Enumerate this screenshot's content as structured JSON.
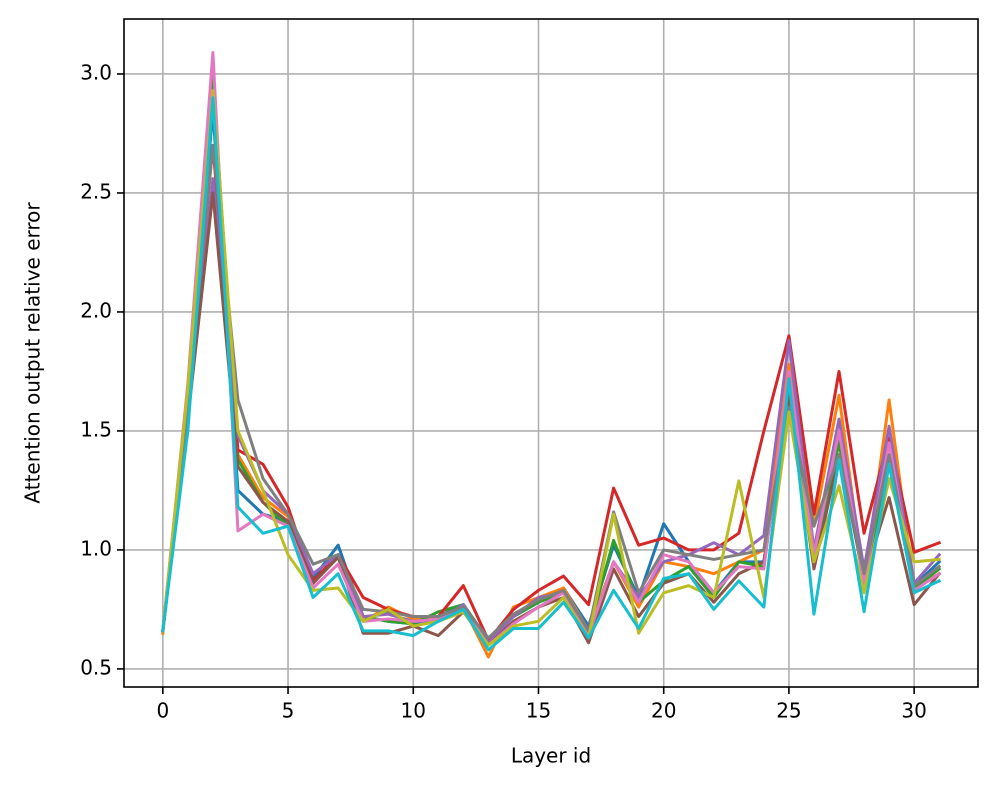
{
  "chart_data": {
    "type": "line",
    "xlabel": "Layer id",
    "ylabel": "Attention output relative error",
    "x": [
      0,
      1,
      2,
      3,
      4,
      5,
      6,
      7,
      8,
      9,
      10,
      11,
      12,
      13,
      14,
      15,
      16,
      17,
      18,
      19,
      20,
      21,
      22,
      23,
      24,
      25,
      26,
      27,
      28,
      29,
      30,
      31
    ],
    "xlim": [
      -1.55,
      32.55
    ],
    "xticks": [
      0,
      5,
      10,
      15,
      20,
      25,
      30
    ],
    "ylim": [
      0.424,
      3.231
    ],
    "yticks": [
      {
        "value": 0.5,
        "label": "0.5"
      },
      {
        "value": 1.0,
        "label": "1.0"
      },
      {
        "value": 1.5,
        "label": "1.5"
      },
      {
        "value": 2.0,
        "label": "2.0"
      },
      {
        "value": 2.5,
        "label": "2.5"
      },
      {
        "value": 3.0,
        "label": "3.0"
      }
    ],
    "grid": true,
    "series": [
      {
        "color": "#1f77b4",
        "values": [
          0.66,
          1.6,
          2.85,
          1.25,
          1.15,
          1.12,
          0.88,
          1.02,
          0.72,
          0.7,
          0.69,
          0.72,
          0.77,
          0.62,
          0.72,
          0.78,
          0.84,
          0.68,
          1.02,
          0.8,
          1.11,
          0.95,
          0.82,
          0.95,
          0.95,
          1.7,
          1.0,
          1.48,
          0.88,
          1.4,
          0.85,
          0.95
        ]
      },
      {
        "color": "#ff7f0e",
        "values": [
          0.65,
          1.62,
          2.95,
          1.4,
          1.22,
          1.14,
          0.86,
          0.97,
          0.7,
          0.76,
          0.71,
          0.72,
          0.76,
          0.55,
          0.76,
          0.8,
          0.84,
          0.66,
          0.95,
          0.76,
          0.95,
          0.93,
          0.9,
          0.95,
          1.0,
          1.78,
          1.1,
          1.65,
          0.86,
          1.63,
          0.84,
          0.9
        ]
      },
      {
        "color": "#2ca02c",
        "values": [
          0.66,
          1.63,
          2.99,
          1.38,
          1.2,
          1.1,
          0.86,
          0.97,
          0.72,
          0.7,
          0.69,
          0.74,
          0.77,
          0.62,
          0.72,
          0.78,
          0.82,
          0.66,
          1.04,
          0.78,
          0.87,
          0.93,
          0.8,
          0.95,
          0.93,
          1.7,
          0.97,
          1.45,
          0.86,
          1.36,
          0.84,
          0.92
        ]
      },
      {
        "color": "#d62728",
        "values": [
          0.66,
          1.6,
          2.7,
          1.42,
          1.36,
          1.18,
          0.87,
          0.98,
          0.8,
          0.75,
          0.72,
          0.72,
          0.85,
          0.62,
          0.75,
          0.83,
          0.89,
          0.77,
          1.26,
          1.02,
          1.05,
          1.0,
          1.0,
          1.07,
          1.5,
          1.9,
          1.15,
          1.75,
          1.07,
          1.47,
          0.99,
          1.03
        ]
      },
      {
        "color": "#9467bd",
        "values": [
          0.66,
          1.55,
          2.56,
          1.48,
          1.25,
          1.15,
          0.9,
          0.98,
          0.72,
          0.73,
          0.7,
          0.7,
          0.77,
          0.61,
          0.72,
          0.8,
          0.82,
          0.64,
          0.95,
          0.8,
          0.95,
          0.98,
          1.03,
          0.98,
          1.06,
          1.88,
          1.0,
          1.55,
          0.92,
          1.52,
          0.86,
          0.98
        ]
      },
      {
        "color": "#8c564b",
        "values": [
          0.66,
          1.55,
          2.5,
          1.35,
          1.2,
          1.12,
          0.86,
          0.97,
          0.65,
          0.65,
          0.68,
          0.64,
          0.74,
          0.6,
          0.7,
          0.76,
          0.8,
          0.61,
          0.92,
          0.72,
          0.86,
          0.9,
          0.78,
          0.9,
          0.95,
          1.65,
          0.92,
          1.4,
          0.88,
          1.22,
          0.77,
          0.9
        ]
      },
      {
        "color": "#e377c2",
        "values": [
          0.66,
          1.7,
          3.09,
          1.08,
          1.15,
          1.1,
          0.84,
          0.94,
          0.7,
          0.71,
          0.7,
          0.71,
          0.75,
          0.6,
          0.69,
          0.76,
          0.82,
          0.64,
          0.95,
          0.78,
          0.98,
          0.95,
          0.82,
          0.93,
          0.92,
          1.75,
          0.98,
          1.5,
          0.86,
          1.45,
          0.83,
          0.9
        ]
      },
      {
        "color": "#7f7f7f",
        "values": [
          0.66,
          1.62,
          2.7,
          1.63,
          1.3,
          1.15,
          0.94,
          0.98,
          0.75,
          0.74,
          0.72,
          0.72,
          0.76,
          0.63,
          0.73,
          0.79,
          0.83,
          0.66,
          1.16,
          0.82,
          1.0,
          0.98,
          0.96,
          0.98,
          1.0,
          1.6,
          1.1,
          1.4,
          0.9,
          1.4,
          0.85,
          0.93
        ]
      },
      {
        "color": "#bcbd22",
        "values": [
          0.66,
          1.68,
          2.93,
          1.5,
          1.25,
          0.98,
          0.83,
          0.84,
          0.7,
          0.75,
          0.68,
          0.7,
          0.74,
          0.6,
          0.68,
          0.7,
          0.8,
          0.63,
          1.15,
          0.65,
          0.82,
          0.85,
          0.8,
          1.29,
          0.8,
          1.58,
          0.95,
          1.27,
          0.82,
          1.3,
          0.95,
          0.96
        ]
      },
      {
        "color": "#17becf",
        "values": [
          0.66,
          1.5,
          2.9,
          1.18,
          1.07,
          1.1,
          0.8,
          0.9,
          0.66,
          0.66,
          0.64,
          0.7,
          0.75,
          0.58,
          0.67,
          0.67,
          0.78,
          0.63,
          0.83,
          0.67,
          0.88,
          0.9,
          0.75,
          0.87,
          0.76,
          1.72,
          0.73,
          1.38,
          0.74,
          1.36,
          0.82,
          0.87
        ]
      }
    ]
  }
}
